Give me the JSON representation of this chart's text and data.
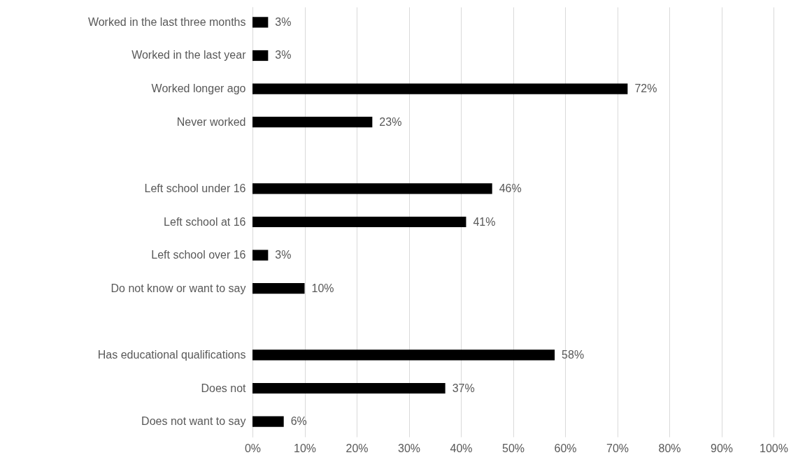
{
  "chart_data": {
    "type": "bar",
    "orientation": "horizontal",
    "categories": [
      "Worked in the last three months",
      "Worked in the last year",
      "Worked longer ago",
      "Never worked",
      null,
      "Left school under 16",
      "Left school at 16",
      "Left school over 16",
      "Do not know or want to say",
      null,
      "Has educational qualifications",
      "Does not",
      "Does not want to say"
    ],
    "values": [
      3,
      3,
      72,
      23,
      null,
      46,
      41,
      3,
      10,
      null,
      58,
      37,
      6
    ],
    "value_labels": [
      "3%",
      "3%",
      "72%",
      "23%",
      null,
      "46%",
      "41%",
      "3%",
      "10%",
      null,
      "58%",
      "37%",
      "6%"
    ],
    "color": "#000000",
    "xlim": [
      0,
      100
    ],
    "xticks": [
      {
        "value": 0,
        "label": "0%"
      },
      {
        "value": 10,
        "label": "10%"
      },
      {
        "value": 20,
        "label": "20%"
      },
      {
        "value": 30,
        "label": "30%"
      },
      {
        "value": 40,
        "label": "40%"
      },
      {
        "value": 50,
        "label": "50%"
      },
      {
        "value": 60,
        "label": "60%"
      },
      {
        "value": 70,
        "label": "70%"
      },
      {
        "value": 80,
        "label": "80%"
      },
      {
        "value": 90,
        "label": "90%"
      },
      {
        "value": 100,
        "label": "100%"
      }
    ],
    "grid": "x"
  }
}
